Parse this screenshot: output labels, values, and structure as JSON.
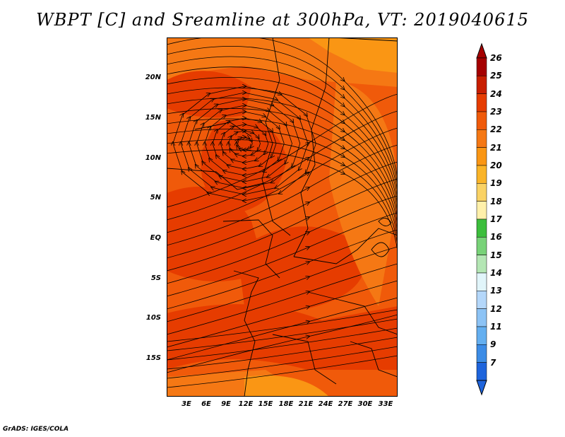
{
  "title": "WBPT [C] and Sreamline at 300hPa, VT: 2019040615",
  "credit": "GrADS: IGES/COLA",
  "lat_labels": [
    "20N",
    "15N",
    "10N",
    "5N",
    "EQ",
    "5S",
    "10S",
    "15S"
  ],
  "lon_labels": [
    "3E",
    "6E",
    "9E",
    "12E",
    "15E",
    "18E",
    "21E",
    "24E",
    "27E",
    "30E",
    "33E"
  ],
  "colorbar": {
    "labels": [
      "26",
      "25",
      "24",
      "23",
      "22",
      "21",
      "20",
      "19",
      "18",
      "17",
      "16",
      "15",
      "14",
      "13",
      "12",
      "11",
      "9",
      "7"
    ],
    "colors": [
      "#a50000",
      "#c81e00",
      "#e63c00",
      "#f05a0a",
      "#f57814",
      "#fa9614",
      "#fab428",
      "#fad264",
      "#fff0aa",
      "#3cbe3c",
      "#78d278",
      "#b4e6b4",
      "#e1f5fa",
      "#b4d7fa",
      "#8cc3f5",
      "#64aff0",
      "#3c8ce6",
      "#1e64dc"
    ],
    "top_cap_color": "#a50000",
    "bottom_cap_color": "#1e64dc"
  },
  "field_colors": {
    "base": "#f05a0a",
    "warm": "#e63c00",
    "cool": "#f57814",
    "cooler": "#fa9614"
  }
}
